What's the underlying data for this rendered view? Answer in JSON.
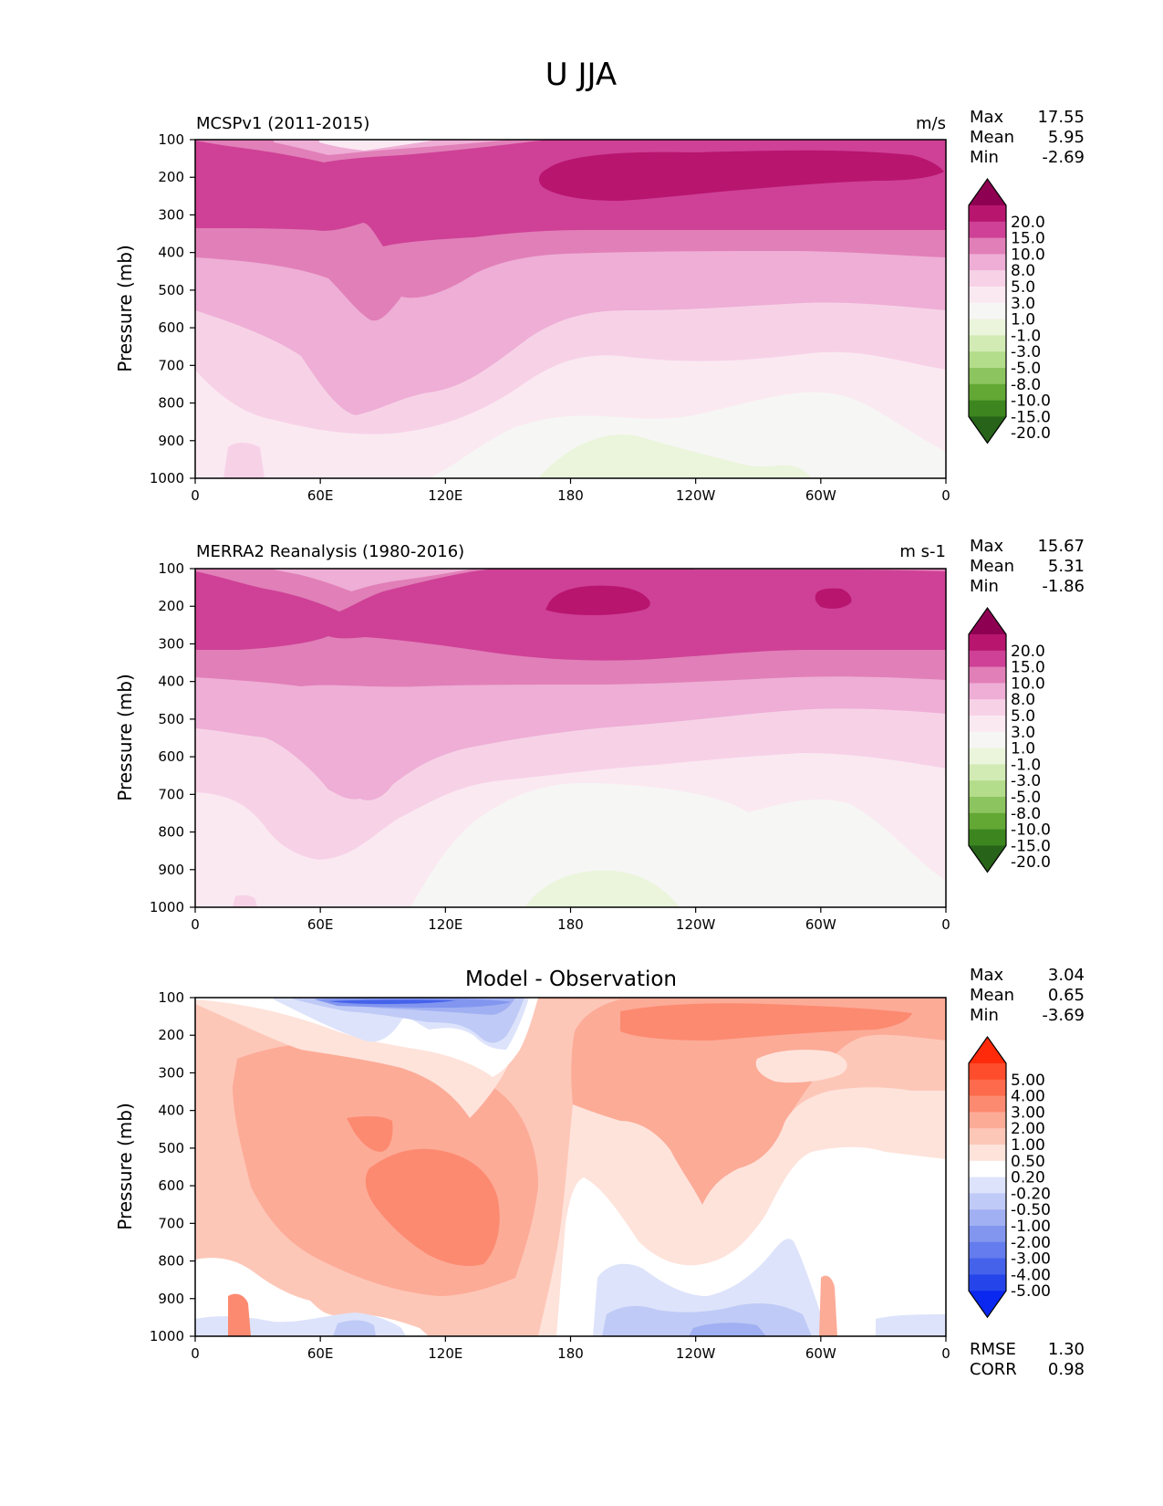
{
  "figure": {
    "title": "U JJA"
  },
  "chart_data": [
    {
      "type": "heatmap",
      "title": "MCSPv1 (2011-2015)",
      "units": "m/s",
      "ylabel": "Pressure (mb)",
      "xlabel": "",
      "x_ticks": [
        "0",
        "60E",
        "120E",
        "180",
        "120W",
        "60W",
        "0"
      ],
      "y_ticks": [
        "100",
        "200",
        "300",
        "400",
        "500",
        "600",
        "700",
        "800",
        "900",
        "1000"
      ],
      "ylim": [
        1000,
        100
      ],
      "xlim": [
        0,
        360
      ],
      "stats": [
        {
          "label": "Max",
          "value": "17.55"
        },
        {
          "label": "Mean",
          "value": "5.95"
        },
        {
          "label": "Min",
          "value": "-2.69"
        }
      ],
      "colorbar": {
        "labels": [
          "20.0",
          "15.0",
          "10.0",
          "8.0",
          "5.0",
          "3.0",
          "1.0",
          "-1.0",
          "-3.0",
          "-5.0",
          "-8.0",
          "-10.0",
          "-15.0",
          "-20.0"
        ],
        "colors": [
          "#8e0152",
          "#b8156f",
          "#ce4196",
          "#e17fb8",
          "#eeaed6",
          "#f7d2e7",
          "#fbe9f2",
          "#f6f6f4",
          "#eaf5dc",
          "#d2ebb5",
          "#b3dd8a",
          "#8cc55f",
          "#63a835",
          "#3d861f",
          "#276419"
        ]
      }
    },
    {
      "type": "heatmap",
      "title": "MERRA2 Reanalysis (1980-2016)",
      "units": "m s-1",
      "ylabel": "Pressure (mb)",
      "xlabel": "",
      "x_ticks": [
        "0",
        "60E",
        "120E",
        "180",
        "120W",
        "60W",
        "0"
      ],
      "y_ticks": [
        "100",
        "200",
        "300",
        "400",
        "500",
        "600",
        "700",
        "800",
        "900",
        "1000"
      ],
      "ylim": [
        1000,
        100
      ],
      "xlim": [
        0,
        360
      ],
      "stats": [
        {
          "label": "Max",
          "value": "15.67"
        },
        {
          "label": "Mean",
          "value": "5.31"
        },
        {
          "label": "Min",
          "value": "-1.86"
        }
      ],
      "colorbar": {
        "labels": [
          "20.0",
          "15.0",
          "10.0",
          "8.0",
          "5.0",
          "3.0",
          "1.0",
          "-1.0",
          "-3.0",
          "-5.0",
          "-8.0",
          "-10.0",
          "-15.0",
          "-20.0"
        ],
        "colors": [
          "#8e0152",
          "#b8156f",
          "#ce4196",
          "#e17fb8",
          "#eeaed6",
          "#f7d2e7",
          "#fbe9f2",
          "#f6f6f4",
          "#eaf5dc",
          "#d2ebb5",
          "#b3dd8a",
          "#8cc55f",
          "#63a835",
          "#3d861f",
          "#276419"
        ]
      }
    },
    {
      "type": "heatmap",
      "title": "Model - Observation",
      "units": "",
      "ylabel": "Pressure (mb)",
      "xlabel": "",
      "x_ticks": [
        "0",
        "60E",
        "120E",
        "180",
        "120W",
        "60W",
        "0"
      ],
      "y_ticks": [
        "100",
        "200",
        "300",
        "400",
        "500",
        "600",
        "700",
        "800",
        "900",
        "1000"
      ],
      "ylim": [
        1000,
        100
      ],
      "xlim": [
        0,
        360
      ],
      "stats": [
        {
          "label": "Max",
          "value": "3.04"
        },
        {
          "label": "Mean",
          "value": "0.65"
        },
        {
          "label": "Min",
          "value": "-3.69"
        }
      ],
      "extra_stats": [
        {
          "label": "RMSE",
          "value": "1.30"
        },
        {
          "label": "CORR",
          "value": "0.98"
        }
      ],
      "colorbar": {
        "labels": [
          "5.00",
          "4.00",
          "3.00",
          "2.00",
          "1.00",
          "0.50",
          "0.20",
          "-0.20",
          "-0.50",
          "-1.00",
          "-2.00",
          "-3.00",
          "-4.00",
          "-5.00"
        ],
        "colors": [
          "#ff2a0a",
          "#fe4d2c",
          "#fd6b4c",
          "#fc8a70",
          "#fcab97",
          "#fdc7b8",
          "#fee3db",
          "#ffffff",
          "#dde3fb",
          "#bfcaf6",
          "#a1b0f2",
          "#8296ef",
          "#647ced",
          "#4562eb",
          "#2545ea",
          "#0a28f0"
        ]
      }
    }
  ]
}
